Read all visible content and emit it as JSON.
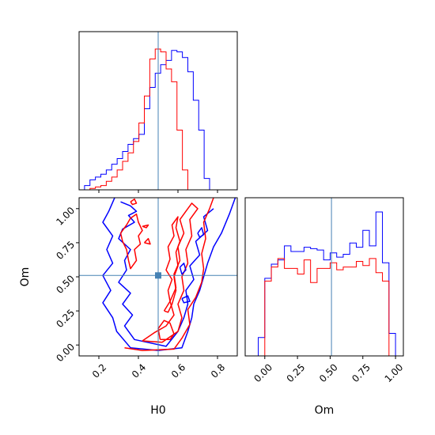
{
  "chart_data": {
    "type": "corner",
    "parameters": [
      "H0",
      "Om"
    ],
    "truth": {
      "H0": 0.5,
      "Om": 0.51
    },
    "colors": {
      "blue": "#0000ff",
      "red": "#ff0000",
      "truth": "#4682b4"
    },
    "panels": {
      "hist_H0": {
        "type": "histogram",
        "xlim": [
          0.1,
          0.9
        ],
        "xticks": [
          0.2,
          0.4,
          0.6,
          0.8
        ],
        "bin_width": 0.0275,
        "series": [
          {
            "color": "blue",
            "x_start": 0.1,
            "counts": [
              0,
              3,
              7,
              9,
              11,
              14,
              18,
              22,
              27,
              32,
              36,
              39,
              57,
              72,
              82,
              88,
              91,
              98,
              97,
              93,
              83,
              63,
              42,
              8,
              0
            ]
          },
          {
            "color": "red",
            "x_start": 0.1,
            "counts": [
              0,
              0,
              1,
              2,
              3,
              6,
              9,
              14,
              20,
              26,
              34,
              47,
              66,
              92,
              99,
              97,
              85,
              76,
              42,
              14,
              0,
              0,
              0,
              0,
              0
            ]
          }
        ]
      },
      "hist_Om": {
        "type": "histogram",
        "xlim": [
          -0.15,
          1.06
        ],
        "xticks": [
          0.0,
          0.25,
          0.5,
          0.75,
          1.0
        ],
        "tick_labels": [
          "0.00",
          "0.25",
          "0.50",
          "0.75",
          "1.00"
        ],
        "xlabel": "Om",
        "bin_width": 0.05,
        "series": [
          {
            "color": "blue",
            "x_start": -0.05,
            "counts": [
              13,
              55,
              65,
              68,
              78,
              74,
              74,
              77,
              76,
              75,
              68,
              73,
              70,
              72,
              80,
              77,
              89,
              78,
              102,
              66,
              16
            ]
          },
          {
            "color": "red",
            "x_start": -0.05,
            "counts": [
              0,
              53,
              63,
              69,
              62,
              62,
              58,
              68,
              52,
              62,
              62,
              66,
              61,
              63,
              63,
              67,
              64,
              69,
              59,
              53,
              0
            ]
          }
        ]
      },
      "contour_H0_Om": {
        "type": "contour",
        "xlim": [
          0.1,
          0.9
        ],
        "ylim": [
          -0.08,
          1.08
        ],
        "xticks": [
          0.2,
          0.4,
          0.6,
          0.8
        ],
        "yticks": [
          0.0,
          0.25,
          0.5,
          0.75,
          1.0
        ],
        "tick_labels_y": [
          "0.00",
          "0.25",
          "0.50",
          "0.75",
          "1.00"
        ],
        "xlabel": "H0",
        "ylabel": "Om",
        "contours": [
          {
            "color": "blue",
            "points": [
              [
                0.28,
                1.08
              ],
              [
                0.25,
                0.98
              ],
              [
                0.22,
                0.9
              ],
              [
                0.27,
                0.8
              ],
              [
                0.24,
                0.7
              ],
              [
                0.27,
                0.6
              ],
              [
                0.22,
                0.51
              ],
              [
                0.26,
                0.4
              ],
              [
                0.22,
                0.31
              ],
              [
                0.27,
                0.2
              ],
              [
                0.29,
                0.1
              ],
              [
                0.36,
                -0.02
              ],
              [
                0.5,
                -0.04
              ],
              [
                0.62,
                -0.02
              ],
              [
                0.65,
                0.1
              ],
              [
                0.67,
                0.2
              ],
              [
                0.68,
                0.3
              ],
              [
                0.71,
                0.4
              ],
              [
                0.73,
                0.5
              ],
              [
                0.75,
                0.6
              ],
              [
                0.78,
                0.72
              ],
              [
                0.82,
                0.82
              ],
              [
                0.86,
                0.96
              ],
              [
                0.89,
                1.08
              ]
            ]
          },
          {
            "color": "blue",
            "points": [
              [
                0.31,
                1.05
              ],
              [
                0.36,
                1.02
              ],
              [
                0.39,
                0.98
              ],
              [
                0.35,
                0.95
              ],
              [
                0.38,
                0.9
              ],
              [
                0.32,
                0.85
              ],
              [
                0.3,
                0.78
              ],
              [
                0.36,
                0.7
              ],
              [
                0.33,
                0.62
              ],
              [
                0.34,
                0.55
              ],
              [
                0.3,
                0.46
              ],
              [
                0.36,
                0.38
              ],
              [
                0.32,
                0.3
              ],
              [
                0.37,
                0.22
              ],
              [
                0.33,
                0.14
              ],
              [
                0.38,
                0.04
              ],
              [
                0.54,
                -0.01
              ],
              [
                0.6,
                0.1
              ],
              [
                0.63,
                0.2
              ],
              [
                0.65,
                0.3
              ],
              [
                0.64,
                0.4
              ],
              [
                0.68,
                0.48
              ],
              [
                0.66,
                0.58
              ],
              [
                0.71,
                0.66
              ],
              [
                0.69,
                0.76
              ],
              [
                0.75,
                0.84
              ],
              [
                0.73,
                0.94
              ],
              [
                0.78,
                1.0
              ]
            ]
          },
          {
            "color": "red",
            "points": [
              [
                0.33,
                -0.02
              ],
              [
                0.42,
                -0.04
              ],
              [
                0.58,
                -0.03
              ],
              [
                0.62,
                0.05
              ],
              [
                0.66,
                0.15
              ],
              [
                0.65,
                0.26
              ],
              [
                0.69,
                0.35
              ],
              [
                0.72,
                0.46
              ],
              [
                0.73,
                0.56
              ],
              [
                0.72,
                0.67
              ],
              [
                0.74,
                0.78
              ],
              [
                0.73,
                0.9
              ],
              [
                0.76,
                1.0
              ],
              [
                0.78,
                1.08
              ]
            ]
          },
          {
            "color": "red",
            "points": [
              [
                0.42,
                0.03
              ],
              [
                0.52,
                0.02
              ],
              [
                0.6,
                0.1
              ],
              [
                0.62,
                0.2
              ],
              [
                0.6,
                0.3
              ],
              [
                0.63,
                0.4
              ],
              [
                0.62,
                0.5
              ],
              [
                0.65,
                0.6
              ],
              [
                0.64,
                0.7
              ],
              [
                0.67,
                0.8
              ],
              [
                0.66,
                0.92
              ],
              [
                0.7,
                1.0
              ],
              [
                0.67,
                1.04
              ],
              [
                0.64,
                0.98
              ],
              [
                0.61,
                0.92
              ],
              [
                0.63,
                0.82
              ],
              [
                0.6,
                0.72
              ],
              [
                0.61,
                0.62
              ],
              [
                0.58,
                0.52
              ],
              [
                0.59,
                0.42
              ],
              [
                0.56,
                0.32
              ],
              [
                0.58,
                0.22
              ],
              [
                0.54,
                0.14
              ],
              [
                0.48,
                0.09
              ],
              [
                0.42,
                0.03
              ]
            ]
          },
          {
            "color": "red",
            "points": [
              [
                0.31,
                0.82
              ],
              [
                0.34,
                0.88
              ],
              [
                0.36,
                0.93
              ],
              [
                0.39,
                0.96
              ],
              [
                0.4,
                0.9
              ],
              [
                0.42,
                0.84
              ],
              [
                0.4,
                0.8
              ],
              [
                0.41,
                0.74
              ],
              [
                0.38,
                0.7
              ],
              [
                0.39,
                0.62
              ],
              [
                0.36,
                0.56
              ],
              [
                0.35,
                0.62
              ],
              [
                0.34,
                0.7
              ],
              [
                0.32,
                0.76
              ],
              [
                0.31,
                0.82
              ]
            ]
          },
          {
            "color": "red",
            "points": [
              [
                0.53,
                0.25
              ],
              [
                0.56,
                0.32
              ],
              [
                0.55,
                0.4
              ],
              [
                0.57,
                0.48
              ],
              [
                0.54,
                0.55
              ],
              [
                0.56,
                0.63
              ],
              [
                0.55,
                0.72
              ],
              [
                0.58,
                0.8
              ],
              [
                0.57,
                0.88
              ],
              [
                0.6,
                0.94
              ],
              [
                0.59,
                0.86
              ],
              [
                0.61,
                0.76
              ],
              [
                0.59,
                0.68
              ],
              [
                0.6,
                0.58
              ],
              [
                0.58,
                0.5
              ],
              [
                0.59,
                0.4
              ],
              [
                0.57,
                0.3
              ],
              [
                0.55,
                0.24
              ],
              [
                0.53,
                0.25
              ]
            ]
          },
          {
            "color": "red",
            "points": [
              [
                0.51,
                0.04
              ],
              [
                0.5,
                0.12
              ],
              [
                0.53,
                0.18
              ],
              [
                0.56,
                0.16
              ],
              [
                0.58,
                0.08
              ],
              [
                0.56,
                0.04
              ],
              [
                0.51,
                0.04
              ]
            ]
          },
          {
            "color": "red",
            "points": [
              [
                0.42,
                0.87
              ],
              [
                0.45,
                0.88
              ],
              [
                0.44,
                0.86
              ],
              [
                0.42,
                0.87
              ]
            ]
          },
          {
            "color": "red",
            "points": [
              [
                0.43,
                0.75
              ],
              [
                0.45,
                0.78
              ],
              [
                0.46,
                0.74
              ],
              [
                0.43,
                0.75
              ]
            ]
          },
          {
            "color": "red",
            "points": [
              [
                0.36,
                1.05
              ],
              [
                0.38,
                1.07
              ],
              [
                0.39,
                1.04
              ],
              [
                0.37,
                1.03
              ],
              [
                0.36,
                1.05
              ]
            ]
          },
          {
            "color": "blue",
            "points": [
              [
                0.61,
                0.57
              ],
              [
                0.63,
                0.6
              ],
              [
                0.64,
                0.55
              ],
              [
                0.62,
                0.52
              ],
              [
                0.61,
                0.57
              ]
            ]
          },
          {
            "color": "blue",
            "points": [
              [
                0.62,
                0.34
              ],
              [
                0.65,
                0.36
              ],
              [
                0.66,
                0.32
              ],
              [
                0.63,
                0.31
              ],
              [
                0.62,
                0.34
              ]
            ]
          },
          {
            "color": "blue",
            "points": [
              [
                0.7,
                0.82
              ],
              [
                0.72,
                0.86
              ],
              [
                0.73,
                0.81
              ],
              [
                0.71,
                0.79
              ],
              [
                0.7,
                0.82
              ]
            ]
          }
        ]
      }
    }
  }
}
